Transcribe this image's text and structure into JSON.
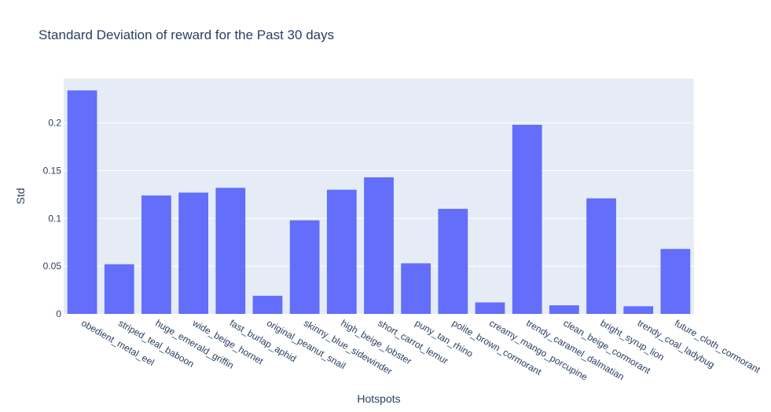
{
  "chart_data": {
    "type": "bar",
    "title": "Standard Deviation of reward for the Past 30 days",
    "xlabel": "Hotspots",
    "ylabel": "Std",
    "categories": [
      "obedient_metal_eel",
      "striped_teal_baboon",
      "huge_emerald_griffin",
      "wide_beige_hornet",
      "fast_burlap_aphid",
      "original_peanut_snail",
      "skinny_blue_sidewinder",
      "high_beige_lobster",
      "short_carrot_lemur",
      "puny_tan_rhino",
      "polite_brown_cormorant",
      "creamy_mango_porcupine",
      "trendy_caramel_dalmatian",
      "clean_beige_cormorant",
      "bright_syrup_lion",
      "trendy_coal_ladybug",
      "future_cloth_cormorant"
    ],
    "values": [
      0.234,
      0.052,
      0.124,
      0.127,
      0.132,
      0.019,
      0.098,
      0.13,
      0.143,
      0.053,
      0.11,
      0.012,
      0.198,
      0.009,
      0.121,
      0.008,
      0.068
    ],
    "ylim": [
      0,
      0.2465
    ],
    "yticks": [
      0,
      0.05,
      0.1,
      0.15,
      0.2
    ],
    "ytick_labels": [
      "0",
      "0.05",
      "0.1",
      "0.15",
      "0.2"
    ],
    "grid": true,
    "bar_color": "#636efa",
    "plot_bg_color": "#e5ecf6",
    "text_color": "#2a3f5f"
  }
}
